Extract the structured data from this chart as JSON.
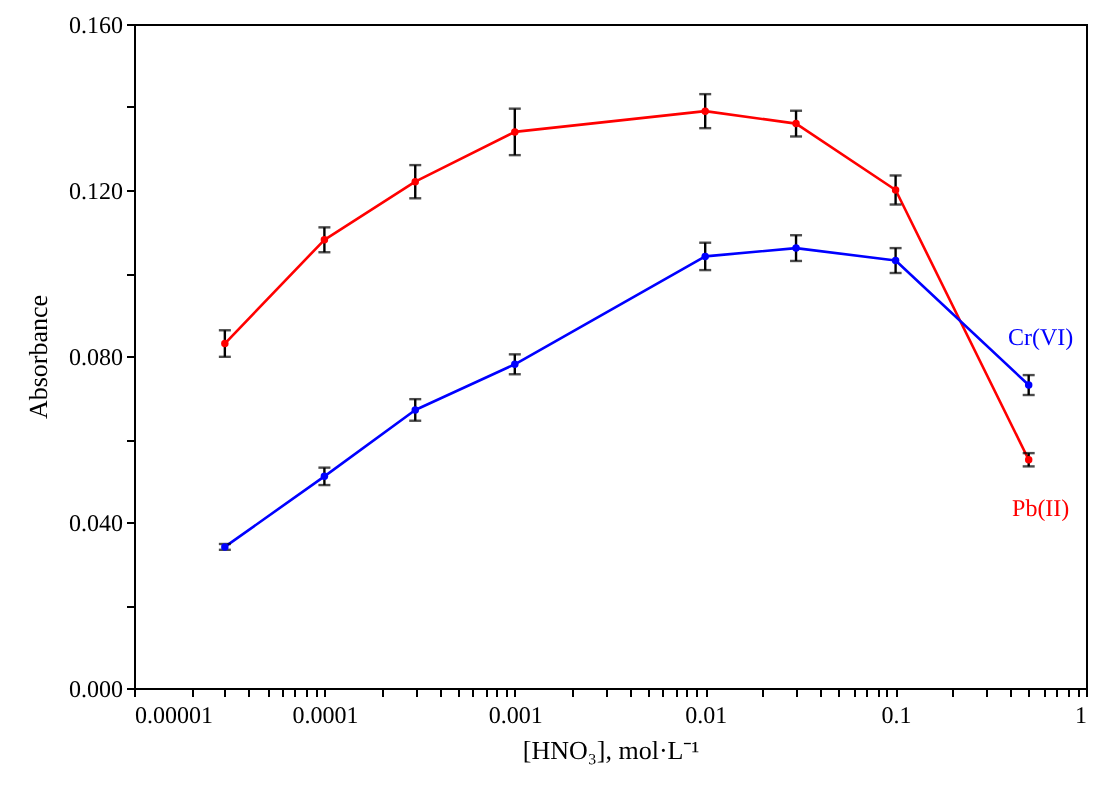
{
  "chart_data": {
    "type": "line",
    "xlabel": "[HNO₃], mol·L⁻¹",
    "ylabel": "Absorbance",
    "x": [
      3e-05,
      0.0001,
      0.0003,
      0.001,
      0.01,
      0.03,
      0.1,
      0.5
    ],
    "series": [
      {
        "name": "Pb(II)",
        "color": "#ff0000",
        "values": [
          0.083,
          0.108,
          0.122,
          0.134,
          0.139,
          0.136,
          0.12,
          0.055
        ],
        "errors": [
          0.0032,
          0.003,
          0.004,
          0.0056,
          0.0041,
          0.0031,
          0.0035,
          0.0016
        ]
      },
      {
        "name": "Cr(VI)",
        "color": "#0000ff",
        "values": [
          0.034,
          0.051,
          0.067,
          0.078,
          0.104,
          0.106,
          0.103,
          0.073
        ],
        "errors": [
          0.0007,
          0.0021,
          0.0026,
          0.0024,
          0.0033,
          0.0031,
          0.003,
          0.0024
        ]
      }
    ],
    "log": "x",
    "xlim": [
      1e-05,
      1
    ],
    "ylim": [
      0,
      0.16
    ],
    "xticks": [
      {
        "value": 1e-05,
        "label": "0.00001"
      },
      {
        "value": 2e-05,
        "label": null
      },
      {
        "value": 3e-05,
        "label": null
      },
      {
        "value": 4e-05,
        "label": null
      },
      {
        "value": 5e-05,
        "label": null
      },
      {
        "value": 6e-05,
        "label": null
      },
      {
        "value": 7e-05,
        "label": null
      },
      {
        "value": 8e-05,
        "label": null
      },
      {
        "value": 9e-05,
        "label": null
      },
      {
        "value": 0.0001,
        "label": "0.0001"
      },
      {
        "value": 0.0002,
        "label": null
      },
      {
        "value": 0.0003,
        "label": null
      },
      {
        "value": 0.0004,
        "label": null
      },
      {
        "value": 0.0005,
        "label": null
      },
      {
        "value": 0.0006,
        "label": null
      },
      {
        "value": 0.0007,
        "label": null
      },
      {
        "value": 0.0008,
        "label": null
      },
      {
        "value": 0.0009,
        "label": null
      },
      {
        "value": 0.001,
        "label": "0.001"
      },
      {
        "value": 0.002,
        "label": null
      },
      {
        "value": 0.003,
        "label": null
      },
      {
        "value": 0.004,
        "label": null
      },
      {
        "value": 0.005,
        "label": null
      },
      {
        "value": 0.006,
        "label": null
      },
      {
        "value": 0.007,
        "label": null
      },
      {
        "value": 0.008,
        "label": null
      },
      {
        "value": 0.009,
        "label": null
      },
      {
        "value": 0.01,
        "label": "0.01"
      },
      {
        "value": 0.02,
        "label": null
      },
      {
        "value": 0.03,
        "label": null
      },
      {
        "value": 0.04,
        "label": null
      },
      {
        "value": 0.05,
        "label": null
      },
      {
        "value": 0.06,
        "label": null
      },
      {
        "value": 0.07,
        "label": null
      },
      {
        "value": 0.08,
        "label": null
      },
      {
        "value": 0.09,
        "label": null
      },
      {
        "value": 0.1,
        "label": "0.1"
      },
      {
        "value": 0.2,
        "label": null
      },
      {
        "value": 0.3,
        "label": null
      },
      {
        "value": 0.4,
        "label": null
      },
      {
        "value": 0.5,
        "label": null
      },
      {
        "value": 0.6,
        "label": null
      },
      {
        "value": 0.7,
        "label": null
      },
      {
        "value": 0.8,
        "label": null
      },
      {
        "value": 0.9,
        "label": null
      },
      {
        "value": 1,
        "label": "1"
      }
    ],
    "yticks": [
      {
        "value": 0,
        "label": "0.000"
      },
      {
        "value": 0.02,
        "label": null
      },
      {
        "value": 0.04,
        "label": "0.040"
      },
      {
        "value": 0.06,
        "label": null
      },
      {
        "value": 0.08,
        "label": "0.080"
      },
      {
        "value": 0.1,
        "label": null
      },
      {
        "value": 0.12,
        "label": "0.120"
      },
      {
        "value": 0.14,
        "label": null
      },
      {
        "value": 0.16,
        "label": "0.160"
      }
    ],
    "grid": false,
    "marker": "circle",
    "line_style": "solid"
  }
}
